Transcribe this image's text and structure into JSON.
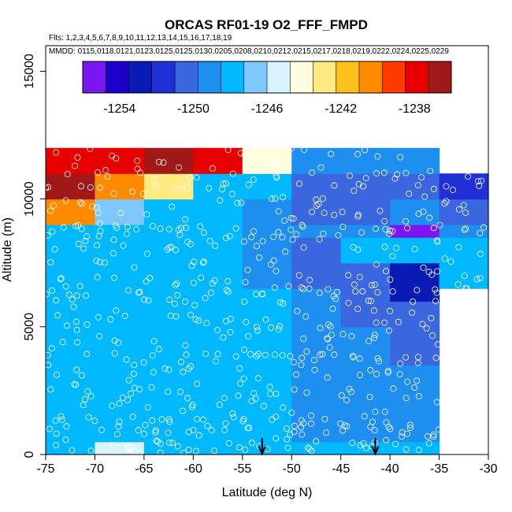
{
  "chart_data": {
    "type": "heatmap",
    "title": "ORCAS RF01-19 O2_FFF_FMPD",
    "flights_note": "Flts: 1,2,3,4,5,6,7,8,9,10,11,12,13,14,15,16,17,18,19",
    "dates_note": "MMDD: 0115,0118,0121,0123,0125,0125,0130,0205,0208,0210,0212,0215,0217,0218,0219,0222,0224,0225,0229",
    "xlabel": "Latitude (deg N)",
    "ylabel": "Altitude (m)",
    "xlim": [
      -75,
      -30
    ],
    "ylim": [
      0,
      16000
    ],
    "x_ticks": [
      -75,
      -70,
      -65,
      -60,
      -55,
      -50,
      -45,
      -40,
      -35,
      -30
    ],
    "y_ticks": [
      0,
      5000,
      10000,
      15000
    ],
    "colorbar": {
      "min": -1256,
      "max": -1236,
      "ticks": [
        -1254,
        -1250,
        -1246,
        -1242,
        -1238
      ],
      "colors": [
        "#7a16f0",
        "#1a00c8",
        "#0a1ab4",
        "#2030d6",
        "#3a66e0",
        "#1e8ef0",
        "#00b8ff",
        "#7ec8ff",
        "#d9f4ff",
        "#ffffe0",
        "#ffeb80",
        "#ffc01a",
        "#ff8a00",
        "#ff3a00",
        "#e80000",
        "#a01818"
      ]
    },
    "grid": false,
    "x_edges": [
      -75,
      -70,
      -65,
      -60,
      -55,
      -50,
      -45,
      -40,
      -35,
      -30
    ],
    "altitude_bands": [
      0,
      500,
      1000,
      1500,
      2500,
      3500,
      4000,
      5000,
      6000,
      6500,
      7500,
      8500,
      9000,
      10000,
      11000,
      12000
    ],
    "cells": [
      [
        -1247.5,
        -1245.5,
        -1247.5,
        -1247.5,
        -1247.5,
        -1248.5,
        -1248.5,
        -1248.5,
        null
      ],
      [
        -1247.5,
        -1247.5,
        -1247.5,
        -1247.5,
        -1247.5,
        -1249.5,
        -1249.5,
        -1249.5,
        null
      ],
      [
        -1247.5,
        -1247.5,
        -1247.5,
        -1247.5,
        -1247.5,
        -1249.5,
        -1249.5,
        -1249.5,
        null
      ],
      [
        -1247.5,
        -1247.5,
        -1247.5,
        -1248.5,
        -1248.5,
        -1249.5,
        -1249.5,
        -1249.5,
        null
      ],
      [
        -1247.5,
        -1247.5,
        -1247.5,
        -1248.5,
        -1248.5,
        -1249.5,
        -1249.5,
        -1249.5,
        null
      ],
      [
        -1247.5,
        -1247.5,
        -1248.5,
        -1248.5,
        -1248.5,
        -1249.5,
        -1249.5,
        -1250.5,
        null
      ],
      [
        -1247.5,
        -1247.5,
        -1248.5,
        -1248.5,
        -1248.5,
        -1249.5,
        -1249.5,
        -1250.5,
        null
      ],
      [
        -1248.5,
        -1247.5,
        -1248.5,
        -1248.5,
        -1248.5,
        -1249.5,
        -1250.5,
        -1250.5,
        null
      ],
      [
        -1248.5,
        -1248.5,
        -1248.5,
        -1248.5,
        -1248.5,
        -1249.5,
        -1250.5,
        -1253.5,
        null
      ],
      [
        -1248.5,
        -1247.5,
        -1248.5,
        -1248.5,
        -1249.5,
        -1250.5,
        -1250.5,
        -1253.5,
        -1248.5
      ],
      [
        -1248.5,
        -1248.5,
        -1248.5,
        -1248.5,
        -1249.5,
        -1250.5,
        -1248.5,
        -1248.5,
        -1248.5
      ],
      [
        -1248.5,
        -1248.5,
        -1248.5,
        -1248.5,
        -1249.5,
        -1249.5,
        -1249.5,
        -1255.5,
        -1249.5
      ],
      [
        -1240.5,
        -1246.5,
        -1248.5,
        -1247.5,
        -1249.5,
        -1250.5,
        -1250.5,
        -1249.5,
        -1250.5
      ],
      [
        -1236.5,
        -1240.5,
        -1242.5,
        -1247.5,
        -1248.5,
        -1250.5,
        -1250.5,
        -1250.5,
        -1251.5
      ],
      [
        -1237.5,
        -1237.5,
        -1236.5,
        -1238.5,
        -1244.5,
        -1249.5,
        -1249.5,
        -1249.5,
        null
      ]
    ],
    "arrows_x": [
      -53,
      -41.5
    ]
  }
}
